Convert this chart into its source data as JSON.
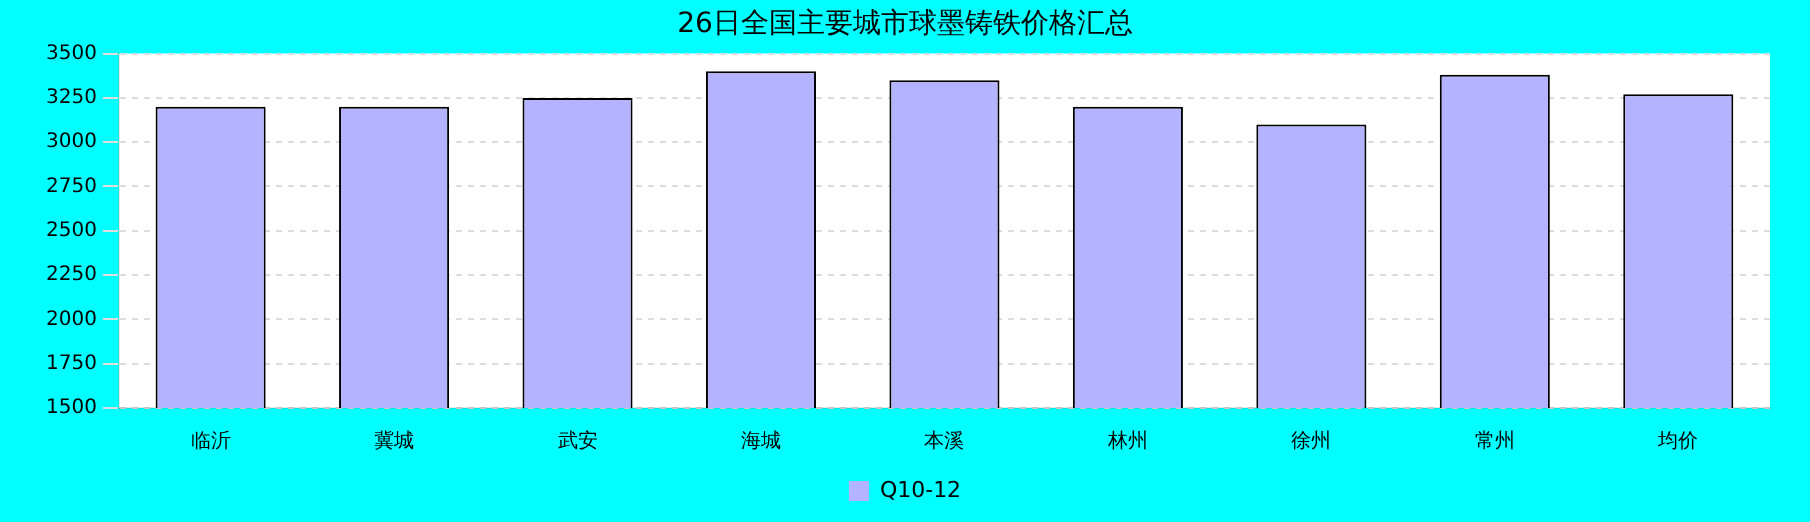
{
  "chart_data": {
    "type": "bar",
    "title": "26日全国主要城市球墨铸铁价格汇总",
    "categories": [
      "临沂",
      "冀城",
      "武安",
      "海城",
      "本溪",
      "林州",
      "徐州",
      "常州",
      "均价"
    ],
    "series": [
      {
        "name": "Q10-12",
        "color": "#b3b3ff",
        "values": [
          3200,
          3200,
          3250,
          3400,
          3350,
          3200,
          3100,
          3380,
          3270
        ]
      }
    ],
    "ylim": [
      1500,
      3500
    ],
    "yticks": [
      1500,
      1750,
      2000,
      2250,
      2500,
      2750,
      3000,
      3250,
      3500
    ],
    "grid": "y",
    "legend": "bottom"
  }
}
